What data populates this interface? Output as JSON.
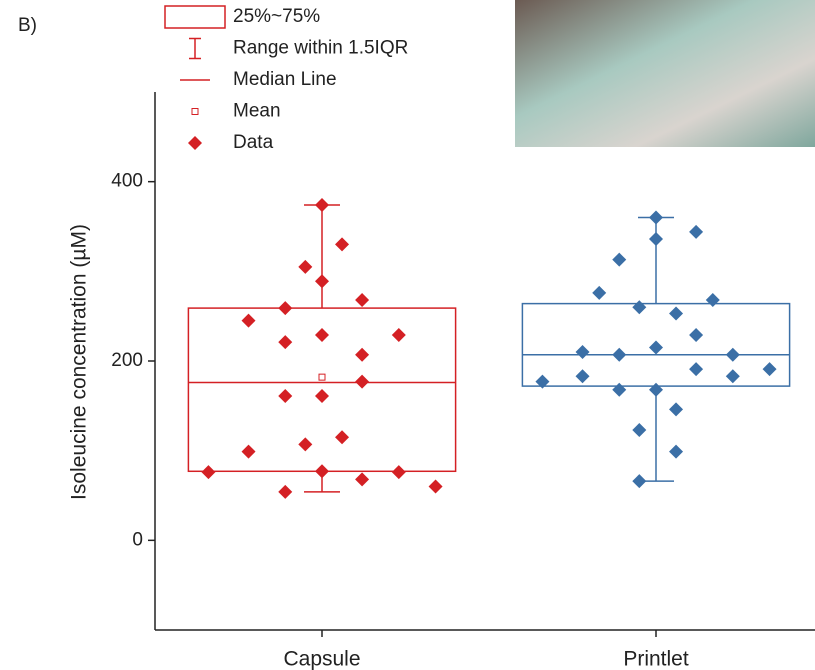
{
  "panel_label": "B)",
  "chart_data": {
    "type": "box",
    "ylabel": "Isoleucine concentration (µM)",
    "categories": [
      "Capsule",
      "Printlet"
    ],
    "xlim": [
      0.5,
      2.5
    ],
    "ylim": [
      -100,
      500
    ],
    "yticks": [
      0,
      200,
      400
    ],
    "legend": [
      "25%~75%",
      "Range within 1.5IQR",
      "Median Line",
      "Mean",
      "Data"
    ],
    "series": [
      {
        "color": "#d42024",
        "q1": 77,
        "q3": 259,
        "median": 176,
        "mean": 182,
        "whisker_low": 54,
        "whisker_high": 374,
        "x": [
          1.0,
          1.06,
          0.95,
          1.0,
          1.12,
          0.89,
          0.78,
          1.23,
          1.0,
          0.89,
          1.12,
          1.12,
          0.89,
          1.0,
          1.06,
          0.95,
          0.78,
          0.66,
          1.0,
          1.23,
          1.12,
          1.34,
          0.89
        ],
        "values": [
          374,
          330,
          305,
          289,
          268,
          259,
          245,
          229,
          229,
          221,
          207,
          177,
          161,
          161,
          115,
          107,
          99,
          76,
          77,
          76,
          68,
          60,
          54
        ]
      },
      {
        "color": "#3b6fa6",
        "q1": 172,
        "q3": 264,
        "median": 207,
        "mean": null,
        "whisker_low": 66,
        "whisker_high": 360,
        "x": [
          2.0,
          2.12,
          2.0,
          1.89,
          1.83,
          2.17,
          1.95,
          2.06,
          2.12,
          2.0,
          1.78,
          1.89,
          2.23,
          2.12,
          2.34,
          1.78,
          2.23,
          1.66,
          1.89,
          2.0,
          2.06,
          1.95,
          2.06,
          1.95
        ],
        "values": [
          360,
          344,
          336,
          313,
          276,
          268,
          260,
          253,
          229,
          215,
          210,
          207,
          207,
          191,
          191,
          183,
          183,
          177,
          168,
          168,
          146,
          123,
          99,
          66
        ]
      }
    ]
  }
}
